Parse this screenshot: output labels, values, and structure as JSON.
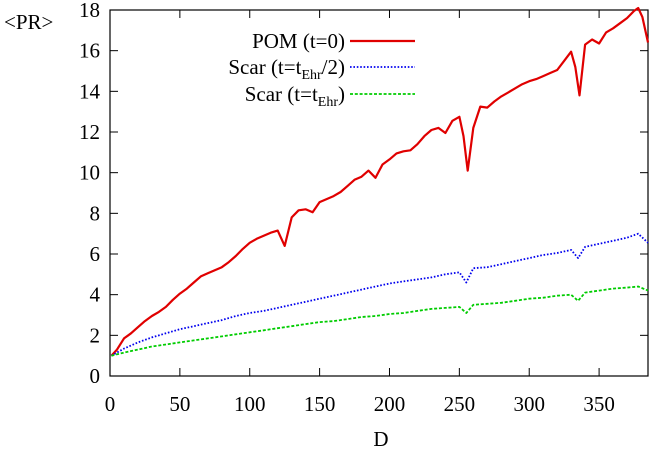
{
  "chart_data": {
    "type": "line",
    "xlabel": "D",
    "ylabel": "<PR>",
    "xlim": [
      0,
      385
    ],
    "ylim": [
      0,
      18
    ],
    "xticks": [
      0,
      50,
      100,
      150,
      200,
      250,
      300,
      350
    ],
    "yticks": [
      0,
      2,
      4,
      6,
      8,
      10,
      12,
      14,
      16,
      18
    ],
    "grid": false,
    "legend_position": "top-right",
    "series": [
      {
        "name": "POM (t=0)",
        "legend_main": "POM (t=0)",
        "color": "#e00000",
        "style": "solid",
        "x": [
          1,
          5,
          10,
          15,
          20,
          25,
          30,
          35,
          40,
          45,
          50,
          55,
          60,
          65,
          70,
          75,
          80,
          85,
          90,
          95,
          100,
          105,
          110,
          115,
          120,
          125,
          130,
          135,
          140,
          145,
          150,
          155,
          160,
          165,
          170,
          175,
          180,
          185,
          190,
          195,
          200,
          205,
          210,
          215,
          220,
          225,
          230,
          235,
          240,
          245,
          250,
          253,
          256,
          260,
          265,
          270,
          275,
          280,
          285,
          290,
          295,
          300,
          305,
          310,
          315,
          320,
          325,
          330,
          333,
          336,
          340,
          345,
          350,
          355,
          360,
          365,
          370,
          375,
          378,
          381,
          385
        ],
        "y": [
          1.0,
          1.3,
          1.85,
          2.1,
          2.4,
          2.7,
          2.95,
          3.15,
          3.4,
          3.75,
          4.05,
          4.3,
          4.6,
          4.9,
          5.05,
          5.2,
          5.35,
          5.6,
          5.9,
          6.25,
          6.55,
          6.75,
          6.9,
          7.05,
          7.15,
          6.4,
          7.8,
          8.15,
          8.2,
          8.05,
          8.55,
          8.7,
          8.85,
          9.05,
          9.35,
          9.65,
          9.8,
          10.1,
          9.75,
          10.4,
          10.65,
          10.95,
          11.05,
          11.1,
          11.4,
          11.8,
          12.1,
          12.2,
          11.95,
          12.55,
          12.75,
          11.8,
          10.1,
          12.2,
          13.25,
          13.2,
          13.5,
          13.75,
          13.95,
          14.15,
          14.35,
          14.5,
          14.6,
          14.75,
          14.9,
          15.05,
          15.5,
          15.95,
          15.2,
          13.8,
          16.3,
          16.55,
          16.35,
          16.9,
          17.1,
          17.35,
          17.6,
          17.95,
          18.1,
          17.65,
          16.4
        ]
      },
      {
        "name": "Scar (t=t_Ehr/2)",
        "legend_main": "Scar (t=t",
        "legend_sub": "Ehr",
        "legend_tail": "/2)",
        "color": "#0000ee",
        "style": "dotted",
        "x": [
          1,
          10,
          20,
          30,
          40,
          50,
          60,
          70,
          80,
          90,
          100,
          110,
          120,
          130,
          140,
          150,
          160,
          170,
          180,
          190,
          200,
          210,
          220,
          230,
          240,
          250,
          255,
          260,
          270,
          280,
          290,
          300,
          310,
          320,
          330,
          335,
          340,
          350,
          360,
          370,
          378,
          385
        ],
        "y": [
          1.0,
          1.35,
          1.65,
          1.9,
          2.1,
          2.3,
          2.45,
          2.6,
          2.75,
          2.95,
          3.1,
          3.2,
          3.35,
          3.5,
          3.65,
          3.8,
          3.95,
          4.1,
          4.25,
          4.4,
          4.55,
          4.65,
          4.75,
          4.85,
          5.0,
          5.1,
          4.6,
          5.3,
          5.35,
          5.5,
          5.65,
          5.8,
          5.95,
          6.05,
          6.2,
          5.8,
          6.35,
          6.5,
          6.65,
          6.8,
          7.0,
          6.55
        ]
      },
      {
        "name": "Scar (t=t_Ehr)",
        "legend_main": "Scar (t=t",
        "legend_sub": "Ehr",
        "legend_tail": ")",
        "color": "#00cc00",
        "style": "dashed",
        "x": [
          1,
          10,
          20,
          30,
          40,
          50,
          60,
          70,
          80,
          90,
          100,
          110,
          120,
          130,
          140,
          150,
          160,
          170,
          180,
          190,
          200,
          210,
          220,
          230,
          240,
          250,
          255,
          260,
          270,
          280,
          290,
          300,
          310,
          320,
          330,
          335,
          340,
          350,
          360,
          370,
          378,
          385
        ],
        "y": [
          1.0,
          1.15,
          1.3,
          1.45,
          1.55,
          1.65,
          1.75,
          1.85,
          1.95,
          2.05,
          2.15,
          2.25,
          2.35,
          2.45,
          2.55,
          2.65,
          2.7,
          2.8,
          2.9,
          2.95,
          3.05,
          3.1,
          3.2,
          3.3,
          3.35,
          3.4,
          3.1,
          3.5,
          3.55,
          3.6,
          3.7,
          3.8,
          3.85,
          3.95,
          4.0,
          3.7,
          4.1,
          4.2,
          4.3,
          4.35,
          4.4,
          4.2
        ]
      }
    ]
  }
}
